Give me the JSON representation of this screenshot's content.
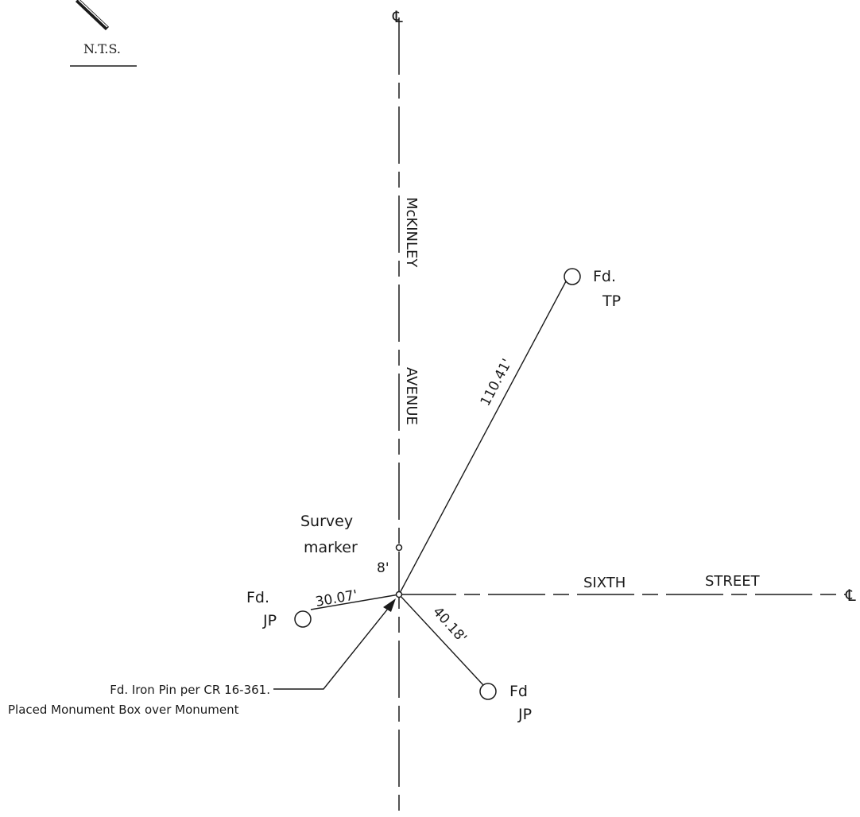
{
  "scale_note": "N.T.S.",
  "centerline_symbol": "℄",
  "streets": {
    "avenue_name_1": "McKINLEY",
    "avenue_name_2": "AVENUE",
    "street_name_1": "SIXTH",
    "street_name_2": "STREET"
  },
  "survey_marker": {
    "line1": "Survey",
    "line2": "marker",
    "offset": "8'"
  },
  "monuments": {
    "tp": {
      "line1": "Fd.",
      "line2": "TP",
      "distance": "110.41'"
    },
    "jp_west": {
      "line1": "Fd.",
      "line2": "JP",
      "distance": "30.07'"
    },
    "jp_south": {
      "line1": "Fd",
      "line2": "JP",
      "distance": "40.18'"
    }
  },
  "callout": {
    "line1": "Fd. Iron Pin per CR 16-361.",
    "line2": "Placed Monument Box over Monument"
  }
}
